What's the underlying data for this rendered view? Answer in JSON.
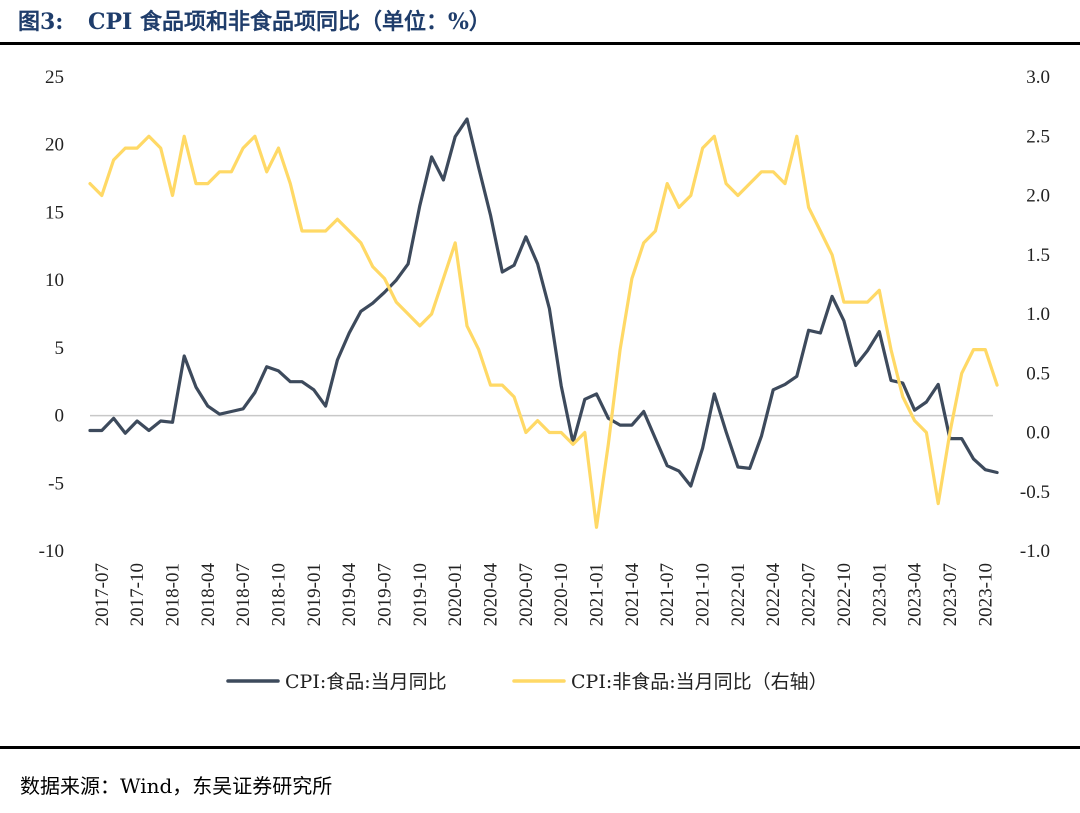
{
  "header": {
    "figure_label": "图3:",
    "title": "CPI 食品项和非食品项同比（单位：%）"
  },
  "source": "数据来源：Wind，东吴证券研究所",
  "colors": {
    "food": "#3d4a5c",
    "nonfood": "#ffd966",
    "zero_line": "#c8c8c8"
  },
  "chart_data": {
    "type": "line",
    "title": "",
    "xlabel": "",
    "ylabel": "",
    "ylim_left": [
      -10,
      25
    ],
    "ylim_right": [
      -1.0,
      3.0
    ],
    "yticks_left": [
      "25",
      "20",
      "15",
      "10",
      "5",
      "0",
      "-5",
      "-10"
    ],
    "yticks_right": [
      "3.0",
      "2.5",
      "2.0",
      "1.5",
      "1.0",
      "0.5",
      "0.0",
      "-0.5",
      "-1.0"
    ],
    "x_tick_labels": [
      "2017-07",
      "2017-10",
      "2018-01",
      "2018-04",
      "2018-07",
      "2018-10",
      "2019-01",
      "2019-04",
      "2019-07",
      "2019-10",
      "2020-01",
      "2020-04",
      "2020-07",
      "2020-10",
      "2021-01",
      "2021-04",
      "2021-07",
      "2021-10",
      "2022-01",
      "2022-04",
      "2022-07",
      "2022-10",
      "2023-01",
      "2023-04",
      "2023-07",
      "2023-10"
    ],
    "x": [
      "2017-06",
      "2017-07",
      "2017-08",
      "2017-09",
      "2017-10",
      "2017-11",
      "2017-12",
      "2018-01",
      "2018-02",
      "2018-03",
      "2018-04",
      "2018-05",
      "2018-06",
      "2018-07",
      "2018-08",
      "2018-09",
      "2018-10",
      "2018-11",
      "2018-12",
      "2019-01",
      "2019-02",
      "2019-03",
      "2019-04",
      "2019-05",
      "2019-06",
      "2019-07",
      "2019-08",
      "2019-09",
      "2019-10",
      "2019-11",
      "2019-12",
      "2020-01",
      "2020-02",
      "2020-03",
      "2020-04",
      "2020-05",
      "2020-06",
      "2020-07",
      "2020-08",
      "2020-09",
      "2020-10",
      "2020-11",
      "2020-12",
      "2021-01",
      "2021-02",
      "2021-03",
      "2021-04",
      "2021-05",
      "2021-06",
      "2021-07",
      "2021-08",
      "2021-09",
      "2021-10",
      "2021-11",
      "2021-12",
      "2022-01",
      "2022-02",
      "2022-03",
      "2022-04",
      "2022-05",
      "2022-06",
      "2022-07",
      "2022-08",
      "2022-09",
      "2022-10",
      "2022-11",
      "2022-12",
      "2023-01",
      "2023-02",
      "2023-03",
      "2023-04",
      "2023-05",
      "2023-06",
      "2023-07",
      "2023-08",
      "2023-09",
      "2023-10",
      "2023-11"
    ],
    "series": [
      {
        "name": "CPI:食品:当月同比",
        "axis": "left",
        "values": [
          -1.1,
          -1.1,
          -0.2,
          -1.3,
          -0.4,
          -1.1,
          -0.4,
          -0.5,
          4.4,
          2.1,
          0.7,
          0.1,
          0.3,
          0.5,
          1.7,
          3.6,
          3.3,
          2.5,
          2.5,
          1.9,
          0.7,
          4.1,
          6.1,
          7.7,
          8.3,
          9.1,
          10.0,
          11.2,
          15.5,
          19.1,
          17.4,
          20.6,
          21.9,
          18.3,
          14.8,
          10.6,
          11.1,
          13.2,
          11.2,
          7.9,
          2.2,
          -2.0,
          1.2,
          1.6,
          -0.2,
          -0.7,
          -0.7,
          0.3,
          -1.7,
          -3.7,
          -4.1,
          -5.2,
          -2.4,
          1.6,
          -1.2,
          -3.8,
          -3.9,
          -1.5,
          1.9,
          2.3,
          2.9,
          6.3,
          6.1,
          8.8,
          7.0,
          3.7,
          4.8,
          6.2,
          2.6,
          2.4,
          0.4,
          1.0,
          2.3,
          -1.7,
          -1.7,
          -3.2,
          -4.0,
          -4.2
        ]
      },
      {
        "name": "CPI:非食品:当月同比（右轴）",
        "axis": "right",
        "values": [
          2.1,
          2.0,
          2.3,
          2.4,
          2.4,
          2.5,
          2.4,
          2.0,
          2.5,
          2.1,
          2.1,
          2.2,
          2.2,
          2.4,
          2.5,
          2.2,
          2.4,
          2.1,
          1.7,
          1.7,
          1.7,
          1.8,
          1.7,
          1.6,
          1.4,
          1.3,
          1.1,
          1.0,
          0.9,
          1.0,
          1.3,
          1.6,
          0.9,
          0.7,
          0.4,
          0.4,
          0.3,
          0.0,
          0.1,
          0.0,
          0.0,
          -0.1,
          0.0,
          -0.8,
          -0.1,
          0.7,
          1.3,
          1.6,
          1.7,
          2.1,
          1.9,
          2.0,
          2.4,
          2.5,
          2.1,
          2.0,
          2.1,
          2.2,
          2.2,
          2.1,
          2.5,
          1.9,
          1.7,
          1.5,
          1.1,
          1.1,
          1.1,
          1.2,
          0.7,
          0.3,
          0.1,
          0.0,
          -0.6,
          0.0,
          0.5,
          0.7,
          0.7,
          0.4
        ]
      }
    ],
    "legend": {
      "position": "bottom-center"
    },
    "grid": false
  }
}
